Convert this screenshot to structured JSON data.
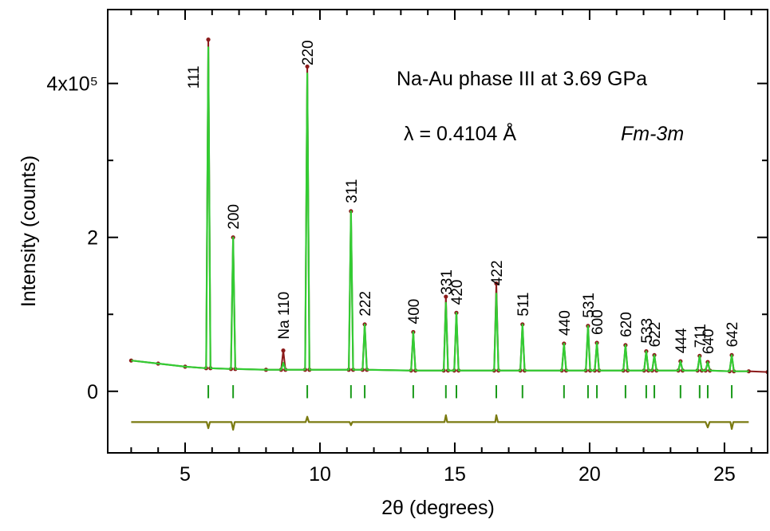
{
  "chart_data": {
    "type": "line",
    "xlabel": "2θ (degrees)",
    "ylabel": "Intensity (counts)",
    "annotations": [
      "Na-Au  phase III at 3.69 GPa",
      "λ = 0.4104 Å",
      "Fm-3m"
    ],
    "xlim": [
      2.13,
      26.6
    ],
    "ylim": [
      -0.8,
      4.96
    ],
    "xticks": [
      5,
      10,
      15,
      20,
      25
    ],
    "xminorticks": [
      3,
      4,
      6,
      7,
      8,
      9,
      11,
      12,
      13,
      14,
      16,
      17,
      18,
      19,
      21,
      22,
      23,
      24,
      26
    ],
    "yticks": [
      0,
      2,
      {
        "value": 4,
        "label": "4x10⁵"
      }
    ],
    "yminorticks": [
      1,
      3
    ],
    "series": [
      {
        "color": "#8b1a1a",
        "marker": "dot",
        "x": [
          3.0,
          4.0,
          5.0,
          5.78,
          5.86,
          5.94,
          6.7,
          6.78,
          6.86,
          8.0,
          8.56,
          8.64,
          8.72,
          9.45,
          9.53,
          9.61,
          11.07,
          11.15,
          11.23,
          11.58,
          11.66,
          11.74,
          13.38,
          13.46,
          13.54,
          14.59,
          14.67,
          14.75,
          14.98,
          15.06,
          15.14,
          16.46,
          16.54,
          16.62,
          17.43,
          17.51,
          17.59,
          18.97,
          19.05,
          19.13,
          19.86,
          19.94,
          20.02,
          20.19,
          20.27,
          20.35,
          21.25,
          21.33,
          21.41,
          22.02,
          22.1,
          22.18,
          22.32,
          22.4,
          22.48,
          23.29,
          23.37,
          23.45,
          24.0,
          24.08,
          24.16,
          24.3,
          24.38,
          24.46,
          25.19,
          25.27,
          25.35,
          25.9,
          26.6
        ],
        "values": [
          0.4,
          0.36,
          0.32,
          0.3,
          4.57,
          0.3,
          0.29,
          2.0,
          0.29,
          0.28,
          0.28,
          0.53,
          0.28,
          0.28,
          4.22,
          0.28,
          0.28,
          2.34,
          0.28,
          0.28,
          0.87,
          0.28,
          0.27,
          0.77,
          0.27,
          0.27,
          1.23,
          0.27,
          0.27,
          1.02,
          0.27,
          0.27,
          1.4,
          0.27,
          0.27,
          0.87,
          0.27,
          0.27,
          0.62,
          0.27,
          0.27,
          0.85,
          0.27,
          0.27,
          0.63,
          0.27,
          0.27,
          0.6,
          0.27,
          0.27,
          0.52,
          0.27,
          0.27,
          0.47,
          0.27,
          0.27,
          0.39,
          0.27,
          0.27,
          0.46,
          0.27,
          0.27,
          0.38,
          0.27,
          0.26,
          0.47,
          0.26,
          0.26,
          0.25
        ]
      },
      {
        "color": "#33cc33",
        "marker": "none",
        "x": [
          3.0,
          4.0,
          5.0,
          5.78,
          5.86,
          5.94,
          6.7,
          6.78,
          6.86,
          8.0,
          8.56,
          8.64,
          8.72,
          9.45,
          9.53,
          9.61,
          11.07,
          11.15,
          11.23,
          11.58,
          11.66,
          11.74,
          13.38,
          13.46,
          13.54,
          14.59,
          14.67,
          14.75,
          14.98,
          15.06,
          15.14,
          16.46,
          16.54,
          16.62,
          17.43,
          17.51,
          17.59,
          18.97,
          19.05,
          19.13,
          19.86,
          19.94,
          20.02,
          20.19,
          20.27,
          20.35,
          21.25,
          21.33,
          21.41,
          22.02,
          22.1,
          22.18,
          22.32,
          22.4,
          22.48,
          23.29,
          23.37,
          23.45,
          24.0,
          24.08,
          24.16,
          24.3,
          24.38,
          24.46,
          25.19,
          25.27,
          25.35,
          25.9
        ],
        "values": [
          0.4,
          0.36,
          0.32,
          0.3,
          4.47,
          0.3,
          0.29,
          2.0,
          0.29,
          0.28,
          0.28,
          0.37,
          0.28,
          0.28,
          4.13,
          0.28,
          0.28,
          2.34,
          0.28,
          0.28,
          0.87,
          0.28,
          0.27,
          0.77,
          0.27,
          0.27,
          1.15,
          0.27,
          0.27,
          1.02,
          0.27,
          0.27,
          1.27,
          0.27,
          0.27,
          0.87,
          0.27,
          0.27,
          0.62,
          0.27,
          0.27,
          0.85,
          0.27,
          0.27,
          0.63,
          0.27,
          0.27,
          0.6,
          0.27,
          0.27,
          0.52,
          0.27,
          0.27,
          0.47,
          0.27,
          0.27,
          0.39,
          0.27,
          0.27,
          0.46,
          0.27,
          0.27,
          0.38,
          0.27,
          0.26,
          0.47,
          0.26,
          0.26
        ]
      },
      {
        "color": "#7a7a10",
        "marker": "none",
        "x": [
          3.0,
          5.8,
          5.86,
          5.92,
          6.72,
          6.78,
          6.84,
          9.47,
          9.53,
          9.59,
          11.1,
          11.15,
          11.2,
          14.62,
          14.67,
          14.72,
          16.5,
          16.54,
          16.6,
          24.3,
          24.38,
          24.45,
          25.22,
          25.27,
          25.33,
          25.9
        ],
        "values": [
          -0.4,
          -0.4,
          -0.48,
          -0.4,
          -0.4,
          -0.5,
          -0.4,
          -0.4,
          -0.33,
          -0.4,
          -0.4,
          -0.44,
          -0.4,
          -0.4,
          -0.31,
          -0.4,
          -0.4,
          -0.31,
          -0.4,
          -0.4,
          -0.47,
          -0.4,
          -0.4,
          -0.49,
          -0.4,
          -0.4
        ]
      }
    ],
    "reflections": {
      "color": "#1a9a1a",
      "ymin": -0.09,
      "ymax": 0.08,
      "x": [
        5.86,
        6.78,
        9.53,
        11.15,
        11.66,
        13.46,
        14.67,
        15.06,
        16.54,
        17.51,
        19.05,
        19.94,
        20.27,
        21.33,
        22.1,
        22.4,
        23.37,
        24.08,
        24.38,
        25.27
      ],
      "labels": [
        "111",
        "200",
        "220",
        "311",
        "222",
        "400",
        "331",
        "420",
        "422",
        "511",
        "440",
        "531",
        "600",
        "620",
        "533",
        "622",
        "444",
        "711",
        "640",
        "642"
      ]
    },
    "extra_peak": {
      "label": "Na 110",
      "x": 8.64
    }
  }
}
